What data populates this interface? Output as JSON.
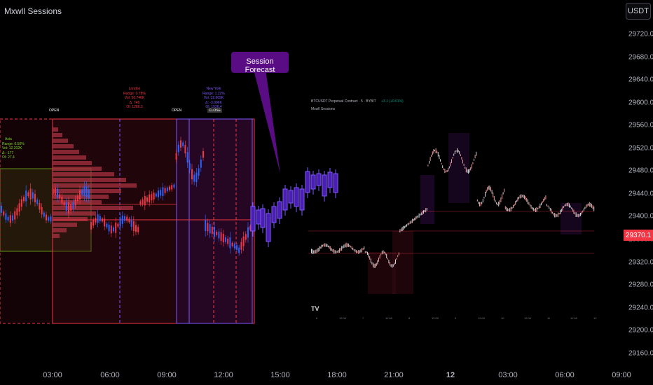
{
  "header": {
    "title": "Mxwll Sessions",
    "currency": "USDT"
  },
  "price_axis": {
    "labels": [
      "29720.0",
      "29680.0",
      "29640.0",
      "29600.0",
      "29560.0",
      "29520.0",
      "29480.0",
      "29440.0",
      "29400.0",
      "29360.0",
      "29320.0",
      "29280.0",
      "29240.0",
      "29200.0",
      "29160.0"
    ],
    "current_price": "29370.1",
    "current_price_color": "#f23645"
  },
  "time_axis": {
    "labels": [
      "03:00",
      "06:00",
      "09:00",
      "12:00",
      "15:00",
      "18:00",
      "21:00",
      "12",
      "03:00",
      "06:00",
      "09:00"
    ]
  },
  "callout": {
    "text": "Session Forecast",
    "color": "#5a0c85"
  },
  "sessions": {
    "asia": {
      "name": "Asia",
      "stats": [
        "Range: 0.50%",
        "Vol: 12.202K",
        "Δ: -177",
        "OI: 27.4"
      ],
      "color": "#7ddc1f"
    },
    "london": {
      "name": "London",
      "stats": [
        "Range: 0.78%",
        "Vol: 50.746K",
        "Δ: 746",
        "OI: 1286.3"
      ],
      "color": "#f23645"
    },
    "new_york": {
      "name": "New York",
      "stats": [
        "Range: 1.22%",
        "Vol: 32.609K",
        "Δ: -3.006K",
        "OI: 1536.4"
      ],
      "color": "#7e57ff"
    }
  },
  "markers": {
    "open1": "OPEN",
    "open2": "OPEN",
    "close": "CLOSE"
  },
  "inset": {
    "symbol": "BTCUSDT Perpetual Contract · 5 · BYBIT",
    "change": "+3.1 (+0.01%)",
    "indicator": "Mxwll Sessions",
    "logo": "TV",
    "time_labels": [
      "6",
      "12:00",
      "7",
      "12:00",
      "8",
      "12:00",
      "9",
      "12:00",
      "10",
      "12:00",
      "11",
      "12:00",
      "12"
    ]
  }
}
